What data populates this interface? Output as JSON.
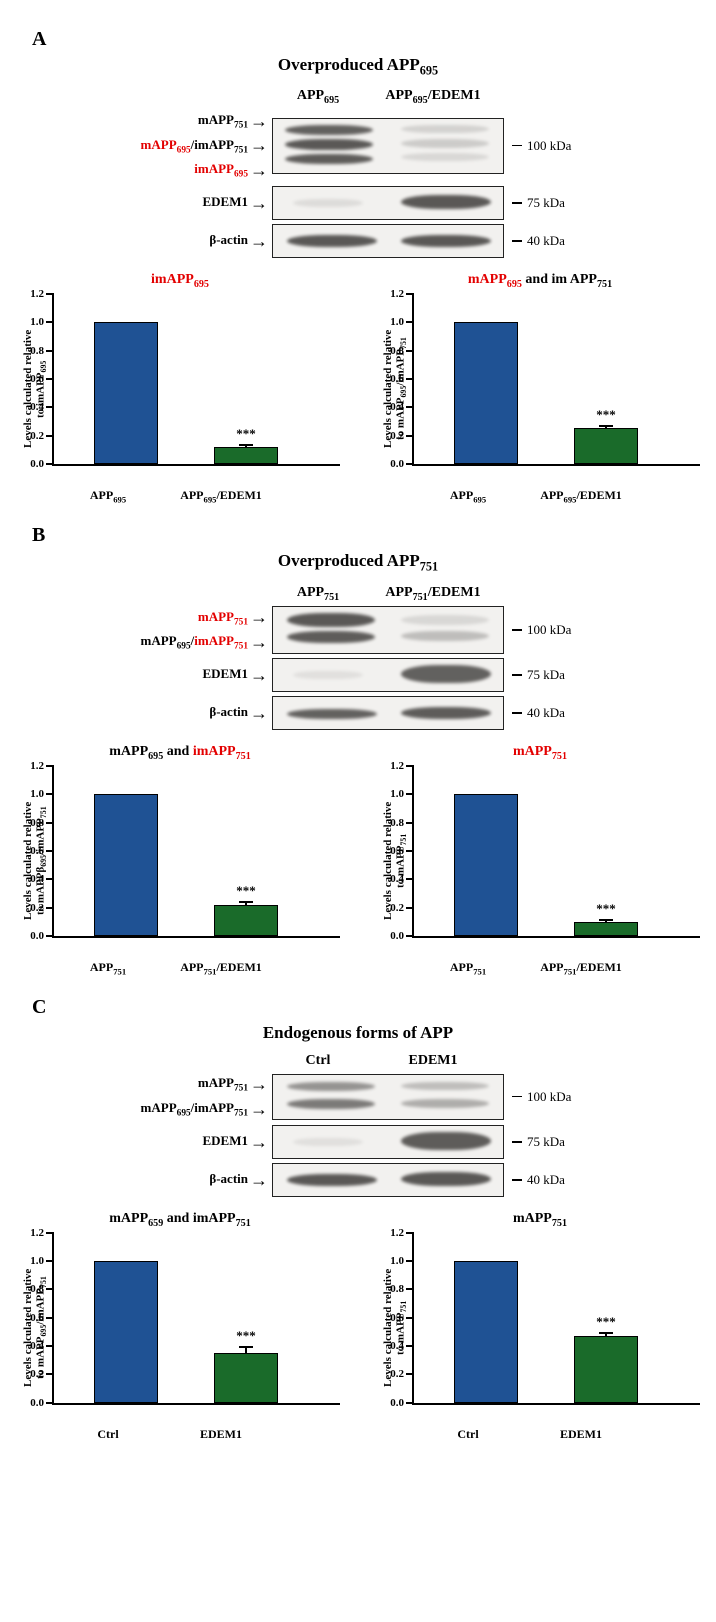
{
  "colors": {
    "bar_control": "#1f5294",
    "bar_treat": "#1a6b2a",
    "red": "#e30000",
    "axis": "#000000",
    "bg": "#ffffff"
  },
  "mw": {
    "app": "100 kDa",
    "edem1": "75 kDa",
    "actin": "40 kDa"
  },
  "yticks": {
    "max": 1.2,
    "step": 0.2,
    "labels": [
      "0.0",
      "0.2",
      "0.4",
      "0.6",
      "0.8",
      "1.0",
      "1.2"
    ]
  },
  "panelA": {
    "label": "A",
    "title_html": "Overproduced APP<sub>695</sub>",
    "lanes": {
      "l1_html": "APP<sub>695</sub>",
      "l2_html": "APP<sub>695</sub>/EDEM1"
    },
    "blot_labels": {
      "app_l1_html": "mAPP<sub>751</sub>",
      "app_l2_html": "<span class='red'>mAPP<sub>695</sub></span>/imAPP<sub>751</sub>",
      "app_l3_html": "<span class='red'>imAPP<sub>695</sub></span>",
      "edem1": "EDEM1",
      "actin": "β-actin"
    },
    "chart_left": {
      "title_html": "<span class='red'>imAPP<sub>695</sub></span>",
      "ylabel_html": "Levels calculated relative<br>to imAPP<sub>695</sub>",
      "x1_html": "APP<sub>695</sub>",
      "x2_html": "APP<sub>695</sub>/EDEM1",
      "bar1": 1.0,
      "bar2": 0.12,
      "err2": 0.015,
      "sig": "***"
    },
    "chart_right": {
      "title_html": "<span class='red'>mAPP<sub>695</sub></span> and im APP<sub>751</sub>",
      "ylabel_html": "Levels calculated relative<br>to mAPP<sub>695</sub>/imAPP<sub>751</sub>",
      "x1_html": "APP<sub>695</sub>",
      "x2_html": "APP<sub>695</sub>/EDEM1",
      "bar1": 1.0,
      "bar2": 0.25,
      "err2": 0.015,
      "sig": "***"
    }
  },
  "panelB": {
    "label": "B",
    "title_html": "Overproduced APP<sub>751</sub>",
    "lanes": {
      "l1_html": "APP<sub>751</sub>",
      "l2_html": "APP<sub>751</sub>/EDEM1"
    },
    "blot_labels": {
      "app_l1_html": "<span class='red'>mAPP<sub>751</sub></span>",
      "app_l2_html": "mAPP<sub>695</sub>/<span class='red'>imAPP<sub>751</sub></span>",
      "edem1": "EDEM1",
      "actin": "β-actin"
    },
    "chart_left": {
      "title_html": "mAPP<sub>695</sub> and <span class='red'>imAPP<sub>751</sub></span>",
      "ylabel_html": "Levels calculated relative<br>to mAPPβ<sub>695</sub>/imAPP<sub>751</sub>",
      "x1_html": "APP<sub>751</sub>",
      "x2_html": "APP<sub>751</sub>/EDEM1",
      "bar1": 1.0,
      "bar2": 0.22,
      "err2": 0.02,
      "sig": "***"
    },
    "chart_right": {
      "title_html": "<span class='red'>mAPP<sub>751</sub></span>",
      "ylabel_html": "Levels calculated relative<br>to mAPP<sub>751</sub>",
      "x1_html": "APP<sub>751</sub>",
      "x2_html": "APP<sub>751</sub>/EDEM1",
      "bar1": 1.0,
      "bar2": 0.1,
      "err2": 0.015,
      "sig": "***"
    }
  },
  "panelC": {
    "label": "C",
    "title_html": "Endogenous forms of APP",
    "lanes": {
      "l1_html": "Ctrl",
      "l2_html": "EDEM1"
    },
    "blot_labels": {
      "app_l1_html": "mAPP<sub>751</sub>",
      "app_l2_html": "mAPP<sub>695</sub>/imAPP<sub>751</sub>",
      "edem1": "EDEM1",
      "actin": "β-actin"
    },
    "chart_left": {
      "title_html": "mAPP<sub>659</sub> and imAPP<sub>751</sub>",
      "ylabel_html": "Levels calculated relative<br>to mAPP<sub>695</sub>/imAPP<sub>751</sub>",
      "x1_html": "Ctrl",
      "x2_html": "EDEM1",
      "bar1": 1.0,
      "bar2": 0.35,
      "err2": 0.04,
      "sig": "***"
    },
    "chart_right": {
      "title_html": "mAPP<sub>751</sub>",
      "ylabel_html": "Levels calculated relative<br>to mAPP<sub>751</sub>",
      "x1_html": "Ctrl",
      "x2_html": "EDEM1",
      "bar1": 1.0,
      "bar2": 0.47,
      "err2": 0.02,
      "sig": "***"
    }
  }
}
